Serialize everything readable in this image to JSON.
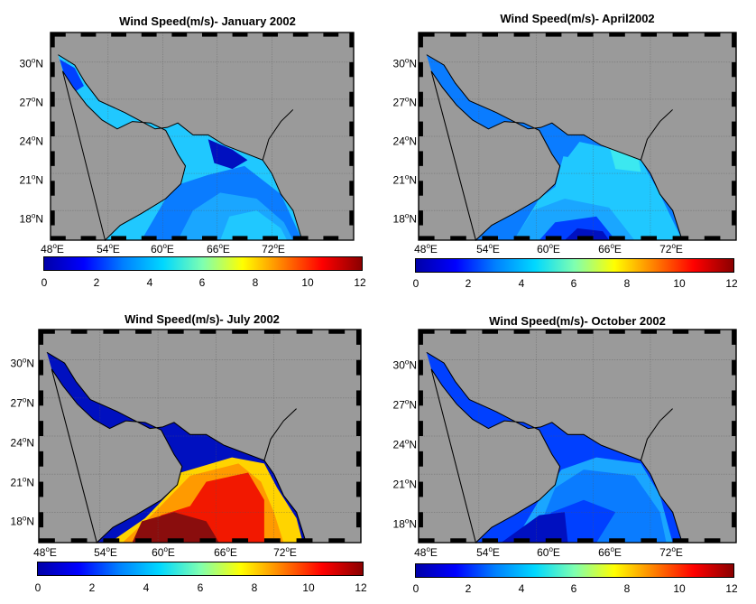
{
  "colors": {
    "land": "#9a9a9a",
    "coast": "#000000",
    "grid": "#555555",
    "deep": "#0010c0",
    "blue": "#0040ff",
    "mid": "#0a7cff",
    "light": "#1aa6ff",
    "cyan": "#20c8ff",
    "aqua": "#3ce8f0",
    "yellow": "#ffd400",
    "orange": "#ff9a00",
    "red": "#f21800",
    "darkred": "#8a0d0d"
  },
  "lat_labels": [
    {
      "deg": "30",
      "hemi": "N"
    },
    {
      "deg": "27",
      "hemi": "N"
    },
    {
      "deg": "24",
      "hemi": "N"
    },
    {
      "deg": "21",
      "hemi": "N"
    },
    {
      "deg": "18",
      "hemi": "N"
    }
  ],
  "lon_labels": [
    {
      "deg": "48",
      "hemi": "E"
    },
    {
      "deg": "54",
      "hemi": "E"
    },
    {
      "deg": "60",
      "hemi": "E"
    },
    {
      "deg": "66",
      "hemi": "E"
    },
    {
      "deg": "72",
      "hemi": "E"
    }
  ],
  "colorbar_ticks": [
    "0",
    "2",
    "4",
    "6",
    "8",
    "10",
    "12"
  ],
  "panels": [
    {
      "title": "Wind Speed(m/s)- January 2002",
      "scheme": "jan"
    },
    {
      "title": "Wind Speed(m/s)- April2002",
      "scheme": "apr"
    },
    {
      "title": "Wind Speed(m/s)- July 2002",
      "scheme": "jul"
    },
    {
      "title": "Wind Speed(m/s)- October 2002",
      "scheme": "oct"
    }
  ]
}
